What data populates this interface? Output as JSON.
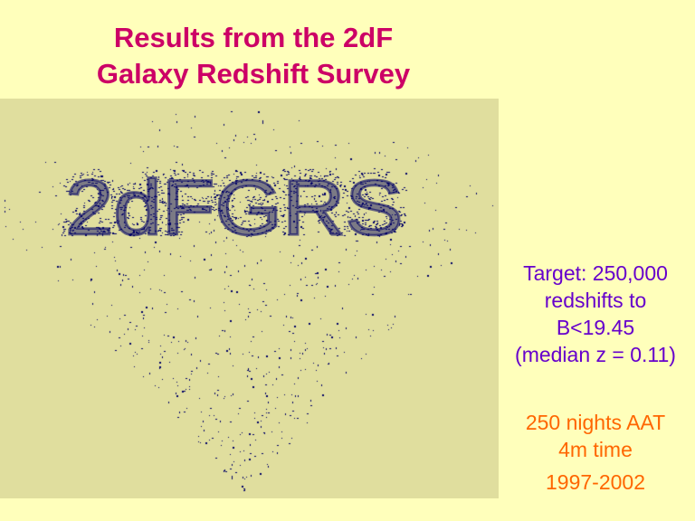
{
  "slide": {
    "title_lines": [
      "Results from the 2dF",
      "Galaxy Redshift Survey"
    ],
    "image": {
      "label": "2dFGRS",
      "background": "#E0DE9E",
      "dot_color": "#000066"
    },
    "target_lines": [
      "Target: 250,000",
      "redshifts to",
      "B<19.45",
      "(median z = 0.11)"
    ],
    "time_lines": [
      "250 nights AAT",
      "4m time"
    ],
    "years": "1997-2002"
  },
  "colors": {
    "background": "#FFFFBB",
    "title": "#CC0066",
    "target": "#6600CC",
    "time": "#FF6600"
  }
}
